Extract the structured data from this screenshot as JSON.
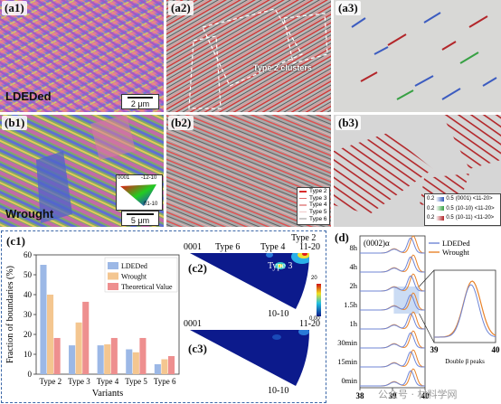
{
  "labels": {
    "a1": "(a1)",
    "a2": "(a2)",
    "a3": "(a3)",
    "b1": "(b1)",
    "b2": "(b2)",
    "b3": "(b3)",
    "c1": "(c1)",
    "c2": "(c2)",
    "c3": "(c3)",
    "d": "(d)"
  },
  "samples": {
    "top": "LDEDed",
    "bottom": "Wrought"
  },
  "scalebars": {
    "a1": "2 μm",
    "b1": "5 μm"
  },
  "a2_annotation": "Type 2 clusters",
  "ipf_key": {
    "top_left": "0001",
    "right": "-12-10",
    "bottom": "01-10"
  },
  "type_legend": [
    "Type 2",
    "Type 3",
    "Type 4",
    "Type 5",
    "Type 6"
  ],
  "type_legend_colors": [
    "#d92b2b",
    "#e06c6c",
    "#e9a0a0",
    "#f0c8c8",
    "#c9c9c9"
  ],
  "b3_legend": [
    {
      "a": "0.2",
      "b": "0.5",
      "desc": "(0001) <11-20>",
      "color": "#2f57b8"
    },
    {
      "a": "0.2",
      "b": "0.5",
      "desc": "(10-10) <11-20>",
      "color": "#37a144"
    },
    {
      "a": "0.2",
      "b": "0.5",
      "desc": "(10-11) <11-20>",
      "color": "#b3262a"
    }
  ],
  "pole_figure": {
    "c2_sample": "LDEDed",
    "c3_sample": "Wrought",
    "corner_0001": "0001",
    "corner_1120": "11-20",
    "corner_1010": "10-10",
    "c2_annotations": [
      "Type 6",
      "Type 4",
      "Type 2",
      "Type 3"
    ],
    "colorbar_max": "20",
    "colorbar_min": "0.00"
  },
  "chart_data": [
    {
      "type": "bar",
      "categories": [
        "Type 2",
        "Type 3",
        "Type 4",
        "Type 5",
        "Type 6"
      ],
      "series": [
        {
          "name": "LDEDed",
          "values": [
            55,
            14.5,
            14.5,
            12.5,
            5
          ],
          "color": "#9cb8e6"
        },
        {
          "name": "Wrought",
          "values": [
            40,
            26,
            15,
            11,
            7.5
          ],
          "color": "#f4c690"
        },
        {
          "name": "Theoretical Value",
          "values": [
            18.2,
            36.4,
            18.2,
            18.2,
            9.1
          ],
          "color": "#ee8f8f"
        }
      ],
      "xlabel": "Variants",
      "ylabel": "Fraction of boundaries (%)",
      "ylim": [
        0,
        60
      ],
      "yticks": [
        "0",
        "10",
        "20",
        "30",
        "40",
        "50",
        "60"
      ],
      "legend_position": "top-right"
    },
    {
      "type": "line",
      "peak_label": "(0002)α",
      "x_ticks": [
        "38",
        "39",
        "40"
      ],
      "xlim": [
        38,
        40
      ],
      "times": [
        "8h",
        "4h",
        "2h",
        "1.5h",
        "1h",
        "30min",
        "15min",
        "0min"
      ],
      "series": [
        {
          "name": "LDEDed",
          "color": "#6f86d6"
        },
        {
          "name": "Wrought",
          "color": "#e8822a"
        }
      ],
      "inset_label": "Double β peaks",
      "inset_x_ticks": [
        "39",
        "40"
      ],
      "legend_position": "top-right"
    }
  ],
  "watermark": "公众号 · 材料学网"
}
